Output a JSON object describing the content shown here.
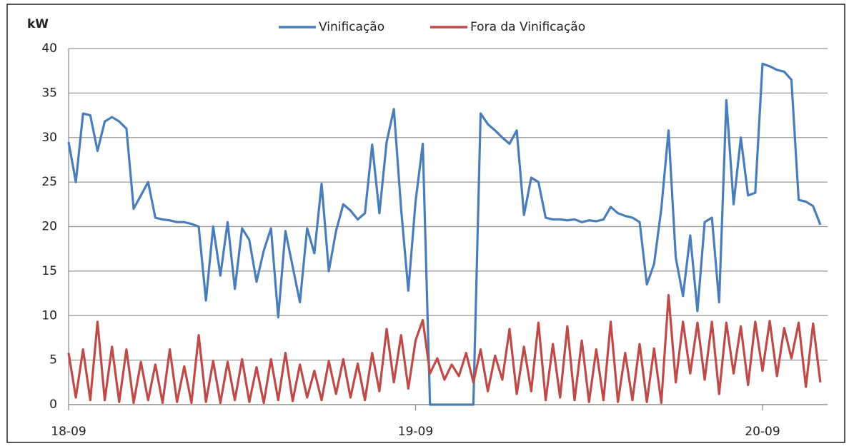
{
  "chart_data": {
    "type": "line",
    "y_label": "kW",
    "x": [
      0,
      0.5,
      1,
      1.5,
      2,
      2.5,
      3,
      3.5,
      4,
      4.5,
      5,
      5.5,
      6,
      6.5,
      7,
      7.5,
      8,
      8.5,
      9,
      9.5,
      10,
      10.5,
      11,
      11.5,
      12,
      12.5,
      13,
      13.5,
      14,
      14.5,
      15,
      15.5,
      16,
      16.5,
      17,
      17.5,
      18,
      18.5,
      19,
      19.5,
      20,
      20.5,
      21,
      21.5,
      22,
      22.5,
      23,
      23.5,
      24,
      24.5,
      25,
      25.5,
      26,
      26.5,
      27,
      27.5,
      28,
      28.5,
      29,
      29.5,
      30,
      30.5,
      31,
      31.5,
      32,
      32.5,
      33,
      33.5,
      34,
      34.5,
      35,
      35.5,
      36,
      36.5,
      37,
      37.5,
      38,
      38.5,
      39,
      39.5,
      40,
      40.5,
      41,
      41.5,
      42,
      42.5,
      43,
      43.5,
      44,
      44.5,
      45,
      45.5,
      46,
      46.5,
      47,
      47.5,
      48,
      48.5,
      49,
      49.5,
      50,
      50.5,
      51,
      51.5,
      52
    ],
    "series": [
      {
        "name": "Vinificação",
        "color": "#4a7ebb",
        "values": [
          29.5,
          25,
          32.7,
          32.5,
          28.5,
          31.8,
          32.3,
          31.8,
          31,
          22,
          23.5,
          25,
          21,
          20.8,
          20.7,
          20.5,
          20.5,
          20.3,
          20,
          11.7,
          20,
          14.5,
          20.5,
          13,
          19.8,
          18.5,
          13.8,
          17.3,
          19.8,
          9.8,
          19.5,
          15.5,
          11.5,
          19.8,
          17,
          24.8,
          15,
          19.5,
          22.5,
          21.8,
          20.8,
          21.5,
          29.2,
          21.5,
          29.5,
          33.2,
          22,
          12.8,
          22.8,
          29.3,
          0,
          0,
          0,
          0,
          0,
          0,
          0,
          32.7,
          31.5,
          30.8,
          30,
          29.3,
          30.8,
          21.3,
          25.5,
          25,
          21,
          20.8,
          20.8,
          20.7,
          20.8,
          20.5,
          20.7,
          20.6,
          20.8,
          22.2,
          21.5,
          21.2,
          21,
          20.5,
          13.5,
          15.8,
          22,
          30.8,
          16.5,
          12.2,
          19,
          10.5,
          20.5,
          21,
          11.5,
          34.2,
          22.5,
          30,
          23.5,
          23.8,
          38.3,
          38,
          37.6,
          37.4,
          36.5,
          23,
          22.8,
          22.3,
          20.2
        ]
      },
      {
        "name": "Fora da Vinificação",
        "color": "#be4b48",
        "values": [
          5.8,
          0.8,
          6.2,
          0.5,
          9.3,
          0.5,
          6.5,
          0.3,
          6.2,
          0.2,
          4.8,
          0.5,
          4.5,
          0.2,
          6.2,
          0.3,
          4.3,
          0.2,
          7.8,
          0.3,
          4.9,
          0.2,
          4.8,
          0.5,
          5.1,
          0.3,
          4.2,
          0.2,
          5.1,
          0.5,
          5.8,
          0.4,
          4.5,
          0.8,
          3.8,
          0.5,
          4.9,
          1.2,
          5.1,
          0.8,
          4.6,
          0.5,
          5.8,
          1.5,
          8.5,
          2.5,
          7.8,
          1.8,
          7.2,
          9.5,
          3.5,
          5.2,
          2.8,
          4.5,
          3.2,
          5.8,
          2.5,
          6.2,
          1.5,
          5.5,
          2.8,
          8.5,
          1.2,
          6.5,
          1.5,
          9.2,
          0.5,
          6.8,
          0.8,
          8.8,
          0.5,
          7.2,
          0.3,
          6.2,
          0.5,
          9.3,
          0.3,
          5.8,
          0.5,
          6.8,
          0.3,
          6.3,
          0.2,
          12.3,
          2.5,
          9.3,
          3.5,
          9.2,
          2.8,
          9.3,
          1.2,
          9.2,
          3.5,
          8.8,
          2.2,
          9.3,
          3.8,
          9.4,
          3.2,
          8.6,
          5.2,
          9.2,
          2.0,
          9.1,
          2.5
        ]
      }
    ],
    "xlim": [
      0,
      52.5
    ],
    "xticks": [
      {
        "value": 0,
        "label": "18-09"
      },
      {
        "value": 24,
        "label": "19-09"
      },
      {
        "value": 48,
        "label": "20-09"
      }
    ],
    "ylim": [
      0,
      40
    ],
    "yticks": [
      0,
      5,
      10,
      15,
      20,
      25,
      30,
      35,
      40
    ],
    "grid": true,
    "legend": "top"
  }
}
